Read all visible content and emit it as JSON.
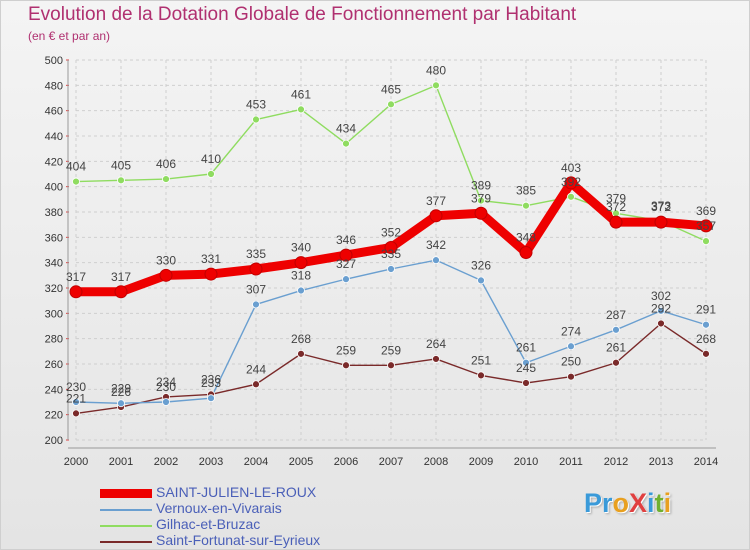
{
  "title": "Evolution de la Dotation Globale de Fonctionnement par Habitant",
  "subtitle": "(en € et par an)",
  "logo": {
    "text": "ProXiti",
    "letters": [
      "P",
      "r",
      "o",
      "X",
      "i",
      "t",
      "i"
    ],
    "colors": [
      "#3a9ad9",
      "#3a9ad9",
      "#e8a020",
      "#e04040",
      "#3a9ad9",
      "#70b030",
      "#e8a020"
    ]
  },
  "colors": {
    "title": "#b03070",
    "axis_text": "#333333",
    "value_label": "#444444",
    "grid": "#cfcfcf"
  },
  "chart_data": {
    "type": "line",
    "title": "Evolution de la Dotation Globale de Fonctionnement par Habitant",
    "ylabel": "(en € et par an)",
    "xlabel": "",
    "ylim": [
      200,
      500
    ],
    "yticks": [
      200,
      220,
      240,
      260,
      280,
      300,
      320,
      340,
      360,
      380,
      400,
      420,
      440,
      460,
      480,
      500
    ],
    "x": [
      "2000",
      "2001",
      "2002",
      "2003",
      "2004",
      "2005",
      "2006",
      "2007",
      "2008",
      "2009",
      "2010",
      "2011",
      "2012",
      "2013",
      "2014"
    ],
    "legend_position": "bottom-left",
    "series": [
      {
        "name": "SAINT-JULIEN-LE-ROUX",
        "color": "#ee0000",
        "width": 9,
        "label_side": "above",
        "values": [
          317,
          317,
          330,
          331,
          335,
          340,
          346,
          352,
          377,
          379,
          348,
          403,
          372,
          372,
          369
        ]
      },
      {
        "name": "Vernoux-en-Vivarais",
        "color": "#6a9fd0",
        "width": 1.4,
        "label_side": "above",
        "values": [
          230,
          229,
          230,
          233,
          307,
          318,
          327,
          335,
          342,
          326,
          261,
          274,
          287,
          302,
          291
        ]
      },
      {
        "name": "Gilhac-et-Bruzac",
        "color": "#8fdc60",
        "width": 1.4,
        "label_side": "above",
        "values": [
          404,
          405,
          406,
          410,
          453,
          461,
          434,
          465,
          480,
          389,
          385,
          392,
          379,
          373,
          357
        ]
      },
      {
        "name": "Saint-Fortunat-sur-Eyrieux",
        "color": "#7a2a2a",
        "width": 1.4,
        "label_side": "above",
        "values": [
          221,
          226,
          234,
          236,
          244,
          268,
          259,
          259,
          264,
          251,
          245,
          250,
          261,
          292,
          268
        ]
      }
    ]
  }
}
